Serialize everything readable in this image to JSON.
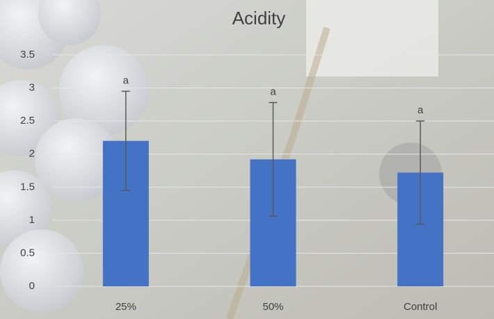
{
  "chart_data": {
    "type": "bar",
    "title": "Acidity",
    "categories": [
      "25%",
      "50%",
      "Control"
    ],
    "values": [
      2.2,
      1.92,
      1.72
    ],
    "errors": [
      0.75,
      0.86,
      0.78
    ],
    "annotations": [
      "a",
      "a",
      "a"
    ],
    "color": "#4472c4",
    "ylim": [
      0,
      3.5
    ],
    "yticks": [
      0,
      0.5,
      1,
      1.5,
      2,
      2.5,
      3,
      3.5
    ],
    "grid": true
  }
}
